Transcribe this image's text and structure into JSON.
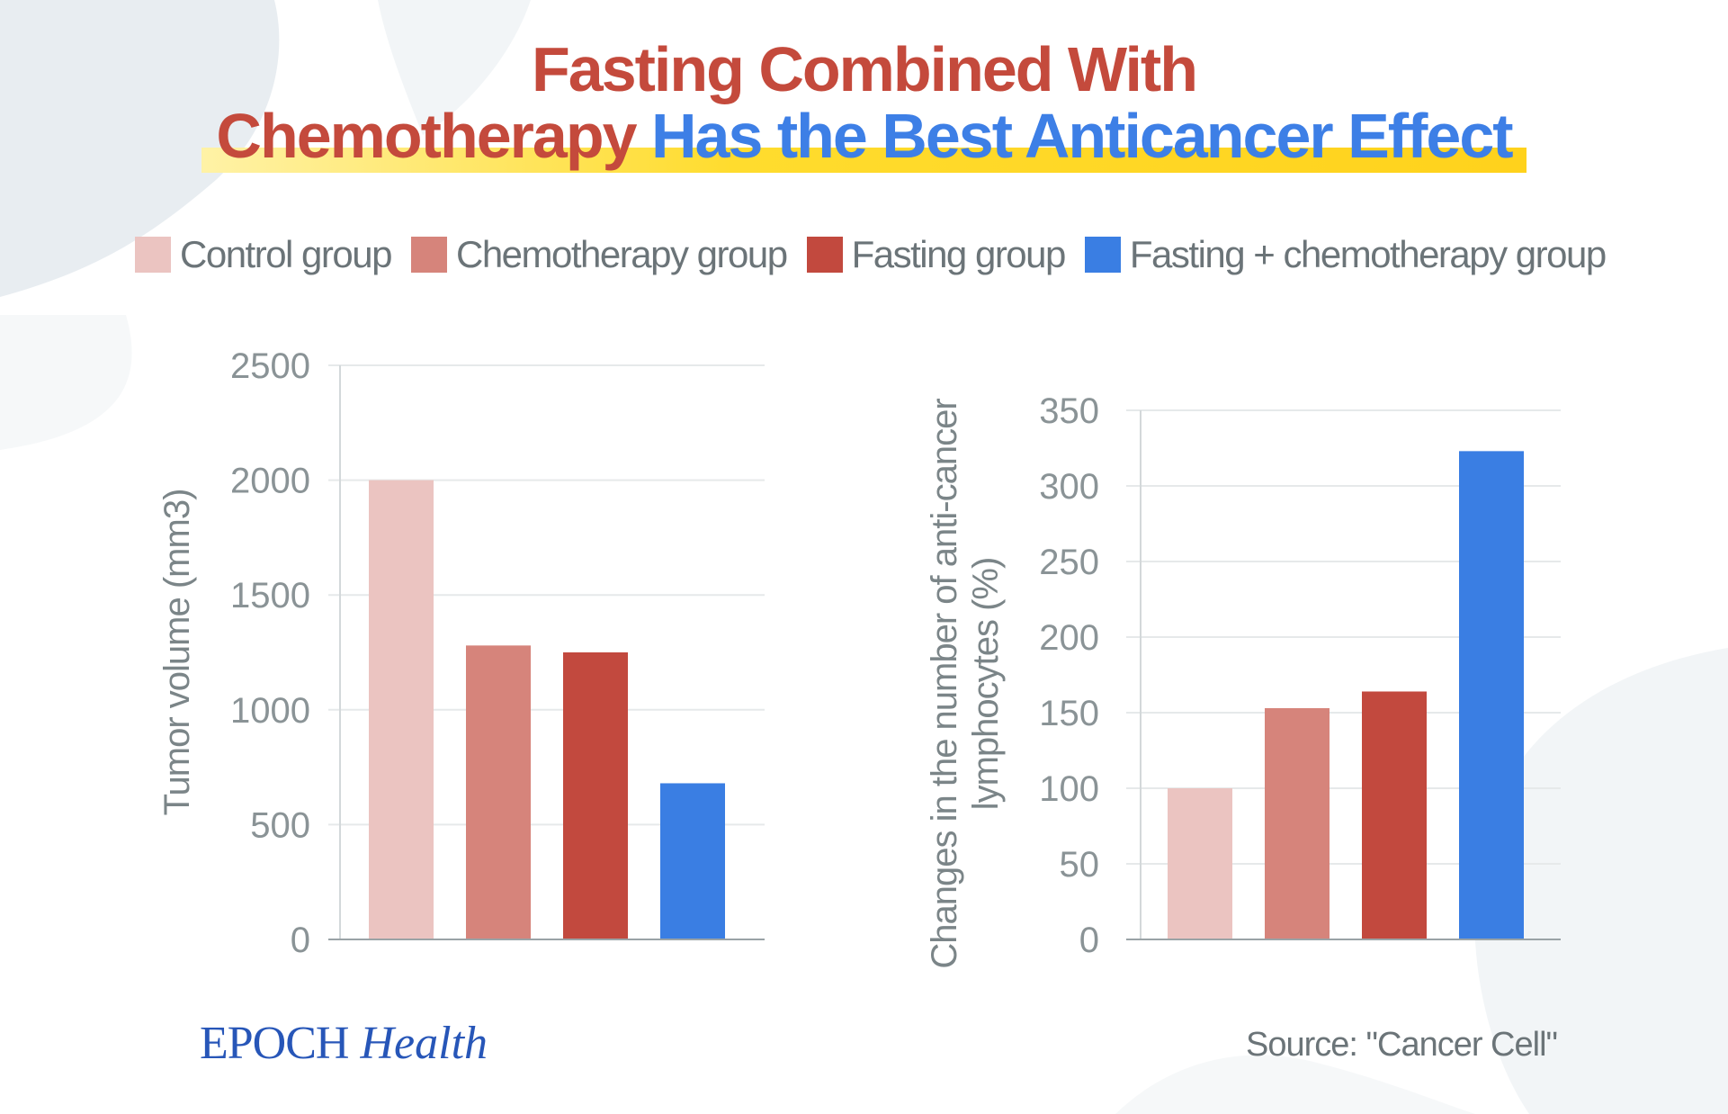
{
  "title": {
    "line1": "Fasting Combined With",
    "line2_part1": "Chemotherapy",
    "line2_part2": "Has the Best Anticancer Effect"
  },
  "colors": {
    "title_red": "#c44a3c",
    "title_blue": "#3d7fe6",
    "highlight_yellow": "#ffd21c",
    "grid": "#e6e9ea",
    "axis_text": "#8a9396"
  },
  "legend": [
    {
      "label": "Control group",
      "color": "#ebc4c1"
    },
    {
      "label": "Chemotherapy group",
      "color": "#d6847b"
    },
    {
      "label": "Fasting group",
      "color": "#c2493e"
    },
    {
      "label": "Fasting + chemotherapy group",
      "color": "#3a7ee3"
    }
  ],
  "chart_data": [
    {
      "type": "bar",
      "categories": [
        "Control group",
        "Chemotherapy group",
        "Fasting group",
        "Fasting + chemotherapy group"
      ],
      "values": [
        2000,
        1280,
        1250,
        680
      ],
      "colors": [
        "#ebc4c1",
        "#d6847b",
        "#c2493e",
        "#3a7ee3"
      ],
      "ylabel": "Tumor volume (mm3)",
      "ylabel_lines": [
        "Tumor volume (mm3)"
      ],
      "ylim": [
        0,
        2500
      ],
      "yticks": [
        0,
        500,
        1000,
        1500,
        2000,
        2500
      ],
      "ytick_labels": [
        "0",
        "500",
        "1000",
        "1500",
        "2000",
        "2500"
      ],
      "grid": true
    },
    {
      "type": "bar",
      "categories": [
        "Control group",
        "Chemotherapy group",
        "Fasting group",
        "Fasting + chemotherapy group"
      ],
      "values": [
        100,
        153,
        164,
        323
      ],
      "colors": [
        "#ebc4c1",
        "#d6847b",
        "#c2493e",
        "#3a7ee3"
      ],
      "ylabel": "Changes in the number of anti-cancer lymphocytes (%)",
      "ylabel_lines": [
        "Changes in the number of anti-cancer",
        "lymphocytes (%)"
      ],
      "ylim": [
        0,
        350
      ],
      "yticks": [
        0,
        50,
        100,
        150,
        200,
        250,
        300,
        350
      ],
      "ytick_labels": [
        "0",
        "50",
        "100",
        "150",
        "200",
        "250",
        "300",
        "350"
      ],
      "grid": true
    }
  ],
  "branding": {
    "name_part1": "EPOCH",
    "name_part2": "Health"
  },
  "source": "Source: \"Cancer Cell\""
}
